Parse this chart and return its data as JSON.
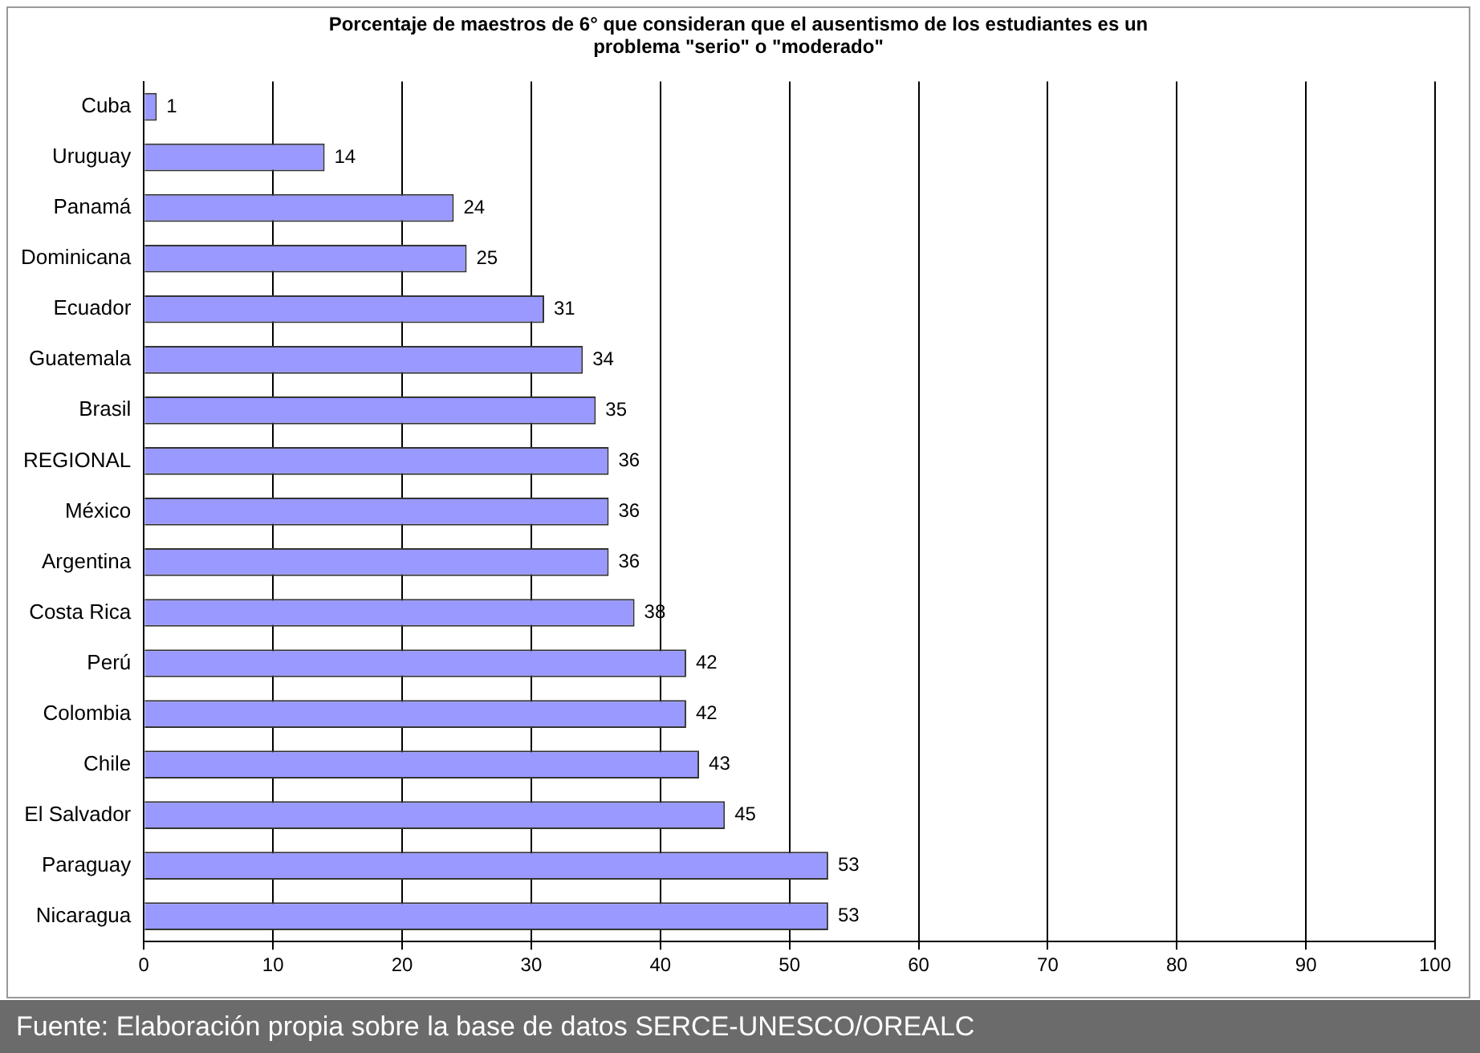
{
  "chart_data": {
    "type": "bar",
    "orientation": "horizontal",
    "title": "Porcentaje de maestros de 6° que consideran que el ausentismo de los estudiantes es un problema \"serio\" o \"moderado\"",
    "categories": [
      "Cuba",
      "Uruguay",
      "Panamá",
      "Dominicana",
      "Ecuador",
      "Guatemala",
      "Brasil",
      "REGIONAL",
      "México",
      "Argentina",
      "Costa Rica",
      "Perú",
      "Colombia",
      "Chile",
      "El Salvador",
      "Paraguay",
      "Nicaragua"
    ],
    "values": [
      1,
      14,
      24,
      25,
      31,
      34,
      35,
      36,
      36,
      36,
      38,
      42,
      42,
      43,
      45,
      53,
      53
    ],
    "color": "#9999ff",
    "xlim": [
      0,
      100
    ],
    "xticks": [
      0,
      10,
      20,
      30,
      40,
      50,
      60,
      70,
      80,
      90,
      100
    ],
    "grid": "x",
    "data_labels": true,
    "legend": false,
    "annotations": [
      "Fuente: Elaboración propia sobre la base de datos SERCE-UNESCO/OREALC"
    ]
  }
}
